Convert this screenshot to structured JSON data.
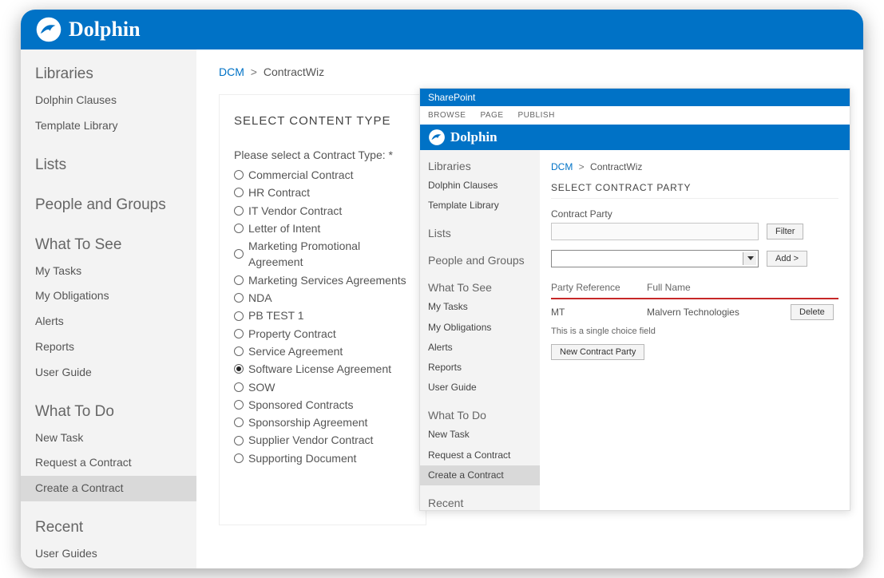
{
  "brand": {
    "name": "Dolphin"
  },
  "colors": {
    "primary": "#0072c6",
    "sidebar_bg": "#f3f3f3",
    "active_bg": "#d9d9d9",
    "text": "#555555",
    "table_accent": "#c62828"
  },
  "breadcrumb": {
    "root": "DCM",
    "sep": ">",
    "current": "ContractWiz"
  },
  "sidebar": {
    "sections": [
      {
        "title": "Libraries",
        "items": [
          "Dolphin Clauses",
          "Template Library"
        ]
      },
      {
        "title": "Lists",
        "items": []
      },
      {
        "title": "People and Groups",
        "items": []
      },
      {
        "title": "What To See",
        "items": [
          "My Tasks",
          "My Obligations",
          "Alerts",
          "Reports",
          "User Guide"
        ]
      },
      {
        "title": "What To Do",
        "items": [
          "New Task",
          "Request a Contract",
          "Create a Contract"
        ],
        "active": "Create a Contract"
      },
      {
        "title": "Recent",
        "items": [
          "User Guides"
        ]
      }
    ]
  },
  "panel": {
    "title": "SELECT CONTENT TYPE",
    "prompt": "Please select a Contract Type: *",
    "options": [
      "Commercial Contract",
      "HR Contract",
      "IT Vendor Contract",
      "Letter of Intent",
      "Marketing Promotional Agreement",
      "Marketing Services Agreements",
      "NDA",
      "PB TEST 1",
      "Property Contract",
      "Service Agreement",
      "Software License Agreement",
      "SOW",
      "Sponsored Contracts",
      "Sponsorship Agreement",
      "Supplier Vendor Contract",
      "Supporting Document"
    ],
    "selected": "Software License Agreement"
  },
  "inset": {
    "sharepoint_label": "SharePoint",
    "tabs": [
      "BROWSE",
      "PAGE",
      "PUBLISH"
    ],
    "breadcrumb": {
      "root": "DCM",
      "sep": ">",
      "current": "ContractWiz"
    },
    "panel_title": "SELECT CONTRACT PARTY",
    "contract_party": {
      "label": "Contract Party",
      "filter_label": "Filter",
      "add_label": "Add >"
    },
    "table": {
      "columns": [
        "Party Reference",
        "Full Name",
        ""
      ],
      "rows": [
        {
          "ref": "MT",
          "name": "Malvern Technologies",
          "action": "Delete"
        }
      ],
      "note": "This is a single choice field"
    },
    "new_party_label": "New Contract Party"
  }
}
